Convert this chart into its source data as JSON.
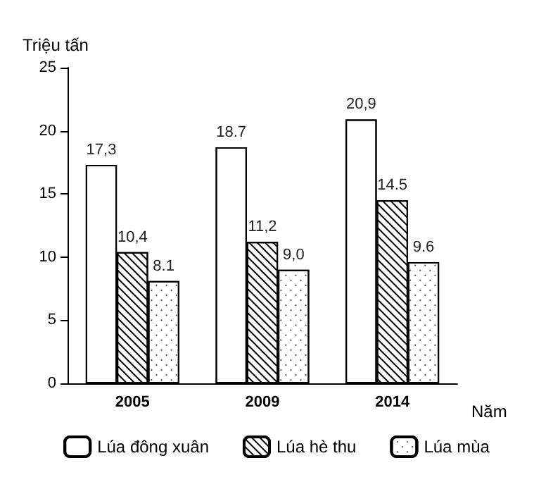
{
  "chart_data": {
    "type": "bar",
    "xlabel": "Năm",
    "ylabel": "Triệu tấn",
    "categories": [
      "2005",
      "2009",
      "2014"
    ],
    "series": [
      {
        "name": "Lúa đông xuân",
        "color": "#ffffff",
        "values": [
          17.3,
          18.7,
          20.9
        ],
        "value_labels": [
          "17,3",
          "18.7",
          "20,9"
        ]
      },
      {
        "name": "Lúa hè thu",
        "color": "#ffffff",
        "values": [
          10.4,
          11.2,
          14.5
        ],
        "value_labels": [
          "10,4",
          "11,2",
          "14.5"
        ]
      },
      {
        "name": "Lúa mùa",
        "color": "#ffffff",
        "values": [
          8.1,
          9.0,
          9.6
        ],
        "value_labels": [
          "8.1",
          "9,0",
          "9.6"
        ]
      }
    ],
    "ylim": [
      0,
      25
    ],
    "yticks": [
      0,
      5,
      10,
      15,
      20,
      25
    ],
    "grid": false,
    "legend": "bottom"
  }
}
